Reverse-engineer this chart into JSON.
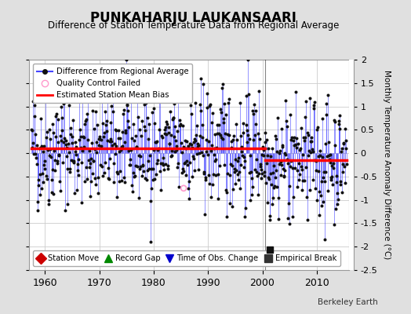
{
  "title": "PUNKAHARJU LAUKANSAARI",
  "subtitle": "Difference of Station Temperature Data from Regional Average",
  "ylabel": "Monthly Temperature Anomaly Difference (°C)",
  "xlabel_years": [
    1960,
    1970,
    1980,
    1990,
    2000,
    2010
  ],
  "ylim": [
    -2.5,
    2.0
  ],
  "yticks": [
    -2.5,
    -2,
    -1.5,
    -1,
    -0.5,
    0,
    0.5,
    1,
    1.5,
    2
  ],
  "xlim_start": 1957,
  "xlim_end": 2016,
  "mean_bias_1": 0.1,
  "mean_bias_2": -0.15,
  "bias_break_year": 2000.5,
  "line_color": "#4444ff",
  "dot_color": "#111111",
  "bias_color": "#ff0000",
  "qc_x": 1985.5,
  "qc_y": -0.75,
  "vertical_line_x": 2000.5,
  "empirical_break_x": 2001.3,
  "empirical_break_y": -2.07,
  "legend1_label": "Difference from Regional Average",
  "legend2_label": "Quality Control Failed",
  "legend3_label": "Estimated Station Mean Bias",
  "bottom_legend": {
    "station_move": {
      "label": "Station Move",
      "color": "#cc0000",
      "marker": "D"
    },
    "record_gap": {
      "label": "Record Gap",
      "color": "#008800",
      "marker": "^"
    },
    "time_obs": {
      "label": "Time of Obs. Change",
      "color": "#0000cc",
      "marker": "v"
    },
    "empirical": {
      "label": "Empirical Break",
      "color": "#333333",
      "marker": "s"
    }
  },
  "background_color": "#e0e0e0",
  "plot_bg_color": "#ffffff",
  "seed": 42
}
